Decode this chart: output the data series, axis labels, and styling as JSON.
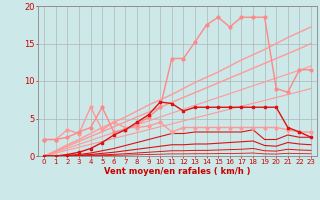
{
  "background_color": "#cce8e8",
  "grid_color": "#aaaaaa",
  "x_ticks": [
    0,
    1,
    2,
    3,
    4,
    5,
    6,
    7,
    8,
    9,
    10,
    11,
    12,
    13,
    14,
    15,
    16,
    17,
    18,
    19,
    20,
    21,
    22,
    23
  ],
  "xlim": [
    -0.5,
    23.5
  ],
  "ylim": [
    0,
    20
  ],
  "y_ticks": [
    0,
    5,
    10,
    15,
    20
  ],
  "xlabel": "Vent moyen/en rafales ( km/h )",
  "series": [
    {
      "y": [
        2.2,
        2.2,
        2.5,
        3.2,
        3.8,
        6.5,
        3.2,
        3.5,
        4.2,
        5.2,
        6.5,
        13.0,
        13.0,
        15.2,
        17.5,
        18.5,
        17.2,
        18.5,
        18.5,
        18.5,
        9.0,
        8.5,
        11.5,
        11.5
      ],
      "color": "#ff8888",
      "lw": 1.0,
      "marker": "o",
      "ms": 2.0,
      "zorder": 5
    },
    {
      "y": [
        0.0,
        0.7,
        1.5,
        2.2,
        3.0,
        3.8,
        4.5,
        5.2,
        6.0,
        6.8,
        7.5,
        8.2,
        9.0,
        9.8,
        10.5,
        11.2,
        12.0,
        12.8,
        13.5,
        14.2,
        15.0,
        15.8,
        16.5,
        17.2
      ],
      "color": "#ff9999",
      "lw": 1.0,
      "marker": null,
      "ms": 0,
      "zorder": 2
    },
    {
      "y": [
        0.0,
        0.65,
        1.3,
        1.95,
        2.6,
        3.25,
        3.9,
        4.55,
        5.2,
        5.85,
        6.5,
        7.15,
        7.8,
        8.45,
        9.1,
        9.75,
        10.4,
        11.05,
        11.7,
        12.35,
        13.0,
        13.65,
        14.3,
        15.0
      ],
      "color": "#ff9999",
      "lw": 1.0,
      "marker": null,
      "ms": 0,
      "zorder": 2
    },
    {
      "y": [
        0.0,
        0.52,
        1.04,
        1.56,
        2.08,
        2.6,
        3.12,
        3.64,
        4.16,
        4.68,
        5.2,
        5.72,
        6.24,
        6.76,
        7.28,
        7.8,
        8.32,
        8.84,
        9.36,
        9.88,
        10.4,
        10.92,
        11.44,
        12.0
      ],
      "color": "#ff9999",
      "lw": 0.8,
      "marker": null,
      "ms": 0,
      "zorder": 2
    },
    {
      "y": [
        0.0,
        0.39,
        0.78,
        1.17,
        1.56,
        1.95,
        2.34,
        2.73,
        3.12,
        3.51,
        3.9,
        4.29,
        4.68,
        5.07,
        5.46,
        5.85,
        6.24,
        6.63,
        7.02,
        7.41,
        7.8,
        8.19,
        8.58,
        9.0
      ],
      "color": "#ff9999",
      "lw": 0.8,
      "marker": null,
      "ms": 0,
      "zorder": 2
    },
    {
      "y": [
        2.2,
        2.2,
        3.5,
        3.0,
        6.5,
        3.5,
        4.5,
        3.8,
        3.8,
        4.0,
        4.5,
        3.2,
        3.8,
        3.8,
        3.8,
        3.8,
        3.8,
        3.8,
        3.8,
        3.8,
        3.8,
        3.5,
        3.2,
        3.2
      ],
      "color": "#ff9999",
      "lw": 1.0,
      "marker": "o",
      "ms": 2.0,
      "zorder": 4
    },
    {
      "y": [
        0.0,
        0.0,
        0.2,
        0.5,
        1.0,
        1.8,
        2.8,
        3.5,
        4.5,
        5.5,
        7.2,
        7.0,
        6.0,
        6.5,
        6.5,
        6.5,
        6.5,
        6.5,
        6.5,
        6.5,
        6.5,
        3.8,
        3.2,
        2.5
      ],
      "color": "#dd1111",
      "lw": 1.0,
      "marker": "s",
      "ms": 2.0,
      "zorder": 5
    },
    {
      "y": [
        0.0,
        0.0,
        0.1,
        0.2,
        0.4,
        0.7,
        1.0,
        1.4,
        1.8,
        2.2,
        2.6,
        3.0,
        3.0,
        3.2,
        3.2,
        3.2,
        3.2,
        3.2,
        3.5,
        2.2,
        2.2,
        2.8,
        2.5,
        2.5
      ],
      "color": "#dd1111",
      "lw": 0.8,
      "marker": null,
      "ms": 0,
      "zorder": 3
    },
    {
      "y": [
        0.0,
        0.0,
        0.05,
        0.1,
        0.2,
        0.35,
        0.5,
        0.7,
        0.9,
        1.1,
        1.3,
        1.5,
        1.5,
        1.6,
        1.6,
        1.7,
        1.8,
        1.9,
        2.0,
        1.4,
        1.3,
        1.8,
        1.6,
        1.5
      ],
      "color": "#dd1111",
      "lw": 0.8,
      "marker": null,
      "ms": 0,
      "zorder": 3
    },
    {
      "y": [
        0.0,
        0.0,
        0.02,
        0.05,
        0.1,
        0.15,
        0.22,
        0.3,
        0.4,
        0.5,
        0.6,
        0.7,
        0.7,
        0.75,
        0.75,
        0.8,
        0.85,
        0.9,
        1.0,
        0.7,
        0.65,
        0.9,
        0.8,
        0.75
      ],
      "color": "#dd1111",
      "lw": 0.7,
      "marker": null,
      "ms": 0,
      "zorder": 3
    },
    {
      "y": [
        0.0,
        0.0,
        0.01,
        0.02,
        0.04,
        0.06,
        0.09,
        0.12,
        0.16,
        0.2,
        0.24,
        0.28,
        0.28,
        0.3,
        0.3,
        0.32,
        0.34,
        0.36,
        0.4,
        0.28,
        0.26,
        0.36,
        0.32,
        0.3
      ],
      "color": "#dd1111",
      "lw": 0.6,
      "marker": null,
      "ms": 0,
      "zorder": 3
    }
  ],
  "xlabel_fontsize": 6,
  "tick_fontsize": 5,
  "tick_color": "#cc0000",
  "axis_color": "#888888"
}
